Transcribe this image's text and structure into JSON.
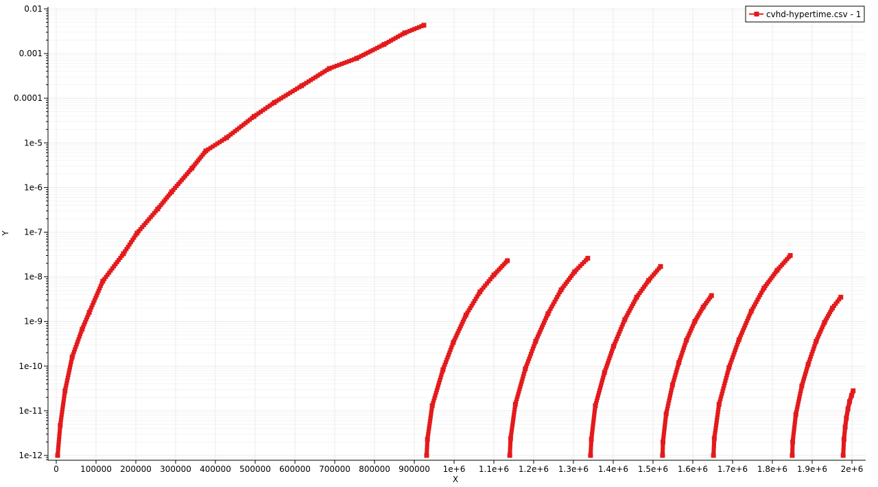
{
  "chart_data": {
    "type": "line",
    "title": "",
    "xlabel": "X",
    "ylabel": "Y",
    "xscale": "linear",
    "yscale": "log",
    "xlim": [
      -20700,
      2034500
    ],
    "ylim": [
      7.8e-13,
      0.0111
    ],
    "grid": true,
    "legend_placement": "top-right",
    "colors": {
      "series": "#e31a1c",
      "grid": "#ebebeb",
      "axis": "#000000"
    },
    "x_ticks": [
      {
        "value": 0,
        "label": "0"
      },
      {
        "value": 100000,
        "label": "100000"
      },
      {
        "value": 200000,
        "label": "200000"
      },
      {
        "value": 300000,
        "label": "300000"
      },
      {
        "value": 400000,
        "label": "400000"
      },
      {
        "value": 500000,
        "label": "500000"
      },
      {
        "value": 600000,
        "label": "600000"
      },
      {
        "value": 700000,
        "label": "700000"
      },
      {
        "value": 800000,
        "label": "800000"
      },
      {
        "value": 900000,
        "label": "900000"
      },
      {
        "value": 1000000,
        "label": "1e+6"
      },
      {
        "value": 1100000,
        "label": "1.1e+6"
      },
      {
        "value": 1200000,
        "label": "1.2e+6"
      },
      {
        "value": 1300000,
        "label": "1.3e+6"
      },
      {
        "value": 1400000,
        "label": "1.4e+6"
      },
      {
        "value": 1500000,
        "label": "1.5e+6"
      },
      {
        "value": 1600000,
        "label": "1.6e+6"
      },
      {
        "value": 1700000,
        "label": "1.7e+6"
      },
      {
        "value": 1800000,
        "label": "1.8e+6"
      },
      {
        "value": 1900000,
        "label": "1.9e+6"
      },
      {
        "value": 2000000,
        "label": "2e+6"
      }
    ],
    "y_ticks": [
      {
        "value": 0.01,
        "label": "0.01"
      },
      {
        "value": 0.001,
        "label": "0.001"
      },
      {
        "value": 0.0001,
        "label": "0.0001"
      },
      {
        "value": 1e-05,
        "label": "1e-5"
      },
      {
        "value": 1e-06,
        "label": "1e-6"
      },
      {
        "value": 1e-07,
        "label": "1e-7"
      },
      {
        "value": 1e-08,
        "label": "1e-8"
      },
      {
        "value": 1e-09,
        "label": "1e-9"
      },
      {
        "value": 1e-10,
        "label": "1e-10"
      },
      {
        "value": 1e-11,
        "label": "1e-11"
      },
      {
        "value": 1e-12,
        "label": "1e-12"
      }
    ],
    "series": [
      {
        "name": "cvhd-hypertime.csv - 1",
        "marker": "square",
        "segments": [
          {
            "x": [
              3500,
              10000,
              22000,
              40000,
              65000,
              83000,
              117000,
              169000,
              203000,
              255000,
              290000,
              341000,
              376000,
              428000,
              497000,
              548000,
              617000,
              686000,
              755000,
              824000,
              876000,
              924000
            ],
            "y": [
              1e-12,
              4.7e-12,
              2.8e-11,
              1.6e-10,
              6.7e-10,
              1.6e-09,
              8e-09,
              3.3e-08,
              9.5e-08,
              3.3e-07,
              8e-07,
              2.7e-06,
              6.6e-06,
              1.3e-05,
              3.9e-05,
              8e-05,
              0.00019,
              0.00046,
              0.00078,
              0.0016,
              0.0029,
              0.0043
            ]
          },
          {
            "x": [
              931000,
              933000,
              945000,
              972000,
              998000,
              1030000,
              1065000,
              1100000,
              1134000
            ],
            "y": [
              1e-12,
              2.3e-12,
              1.3e-11,
              8.3e-11,
              3.4e-10,
              1.4e-09,
              4.6e-09,
              1.1e-08,
              2.3e-08
            ]
          },
          {
            "x": [
              1140000,
              1142000,
              1154000,
              1179000,
              1205000,
              1236000,
              1269000,
              1303000,
              1336000
            ],
            "y": [
              1e-12,
              2.4e-12,
              1.4e-11,
              8.7e-11,
              3.6e-10,
              1.5e-09,
              5.1e-09,
              1.3e-08,
              2.6e-08
            ]
          },
          {
            "x": [
              1343000,
              1345000,
              1355000,
              1378000,
              1401000,
              1429000,
              1459000,
              1489000,
              1519000
            ],
            "y": [
              1e-12,
              2.3e-12,
              1.3e-11,
              7.2e-11,
              2.8e-10,
              1.1e-09,
              3.5e-09,
              8.3e-09,
              1.7e-08
            ]
          },
          {
            "x": [
              1524000,
              1525000,
              1533000,
              1549000,
              1565000,
              1584000,
              1605000,
              1626000,
              1647000
            ],
            "y": [
              1e-12,
              2e-12,
              8.5e-12,
              3.8e-11,
              1.2e-10,
              3.8e-10,
              1e-09,
              2.1e-09,
              3.8e-09
            ]
          },
          {
            "x": [
              1652000,
              1654000,
              1666000,
              1691000,
              1716000,
              1747000,
              1779000,
              1812000,
              1845000
            ],
            "y": [
              1e-12,
              2.4e-12,
              1.4e-11,
              9.3e-11,
              3.9e-10,
              1.7e-09,
              5.6e-09,
              1.4e-08,
              3e-08
            ]
          },
          {
            "x": [
              1850000,
              1851000,
              1859000,
              1874000,
              1890000,
              1910000,
              1931000,
              1951000,
              1972000
            ],
            "y": [
              1e-12,
              2e-12,
              8.3e-12,
              3.6e-11,
              1.1e-10,
              3.6e-10,
              9.5e-10,
              2e-09,
              3.5e-09
            ]
          },
          {
            "x": [
              1978000,
              1980000,
              1983000,
              1986000,
              1990000,
              1994000,
              1999000,
              2003000
            ],
            "y": [
              1e-12,
              2.3e-12,
              4.3e-12,
              6.9e-12,
              1.1e-11,
              1.6e-11,
              2.2e-11,
              2.8e-11
            ]
          }
        ]
      }
    ]
  }
}
